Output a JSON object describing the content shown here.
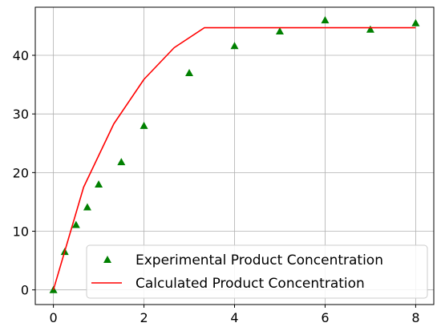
{
  "chart_data": {
    "type": "scatter",
    "title": "",
    "xlabel": "",
    "ylabel": "",
    "xlim": [
      -0.4,
      8.4
    ],
    "ylim": [
      -2.5,
      48.2
    ],
    "xticks": [
      0,
      2,
      4,
      6,
      8
    ],
    "yticks": [
      0,
      10,
      20,
      30,
      40
    ],
    "grid": true,
    "legend_position": "lower-right",
    "series": [
      {
        "name": "Experimental Product Concentration",
        "kind": "scatter",
        "marker": "triangle",
        "color": "#008000",
        "x": [
          0,
          0.25,
          0.5,
          0.75,
          1.0,
          1.5,
          2.0,
          3.0,
          4.0,
          5.0,
          6.0,
          7.0,
          8.0
        ],
        "y": [
          0,
          6.5,
          11.1,
          14.1,
          18.0,
          21.8,
          28.0,
          37.0,
          41.6,
          44.1,
          46.0,
          44.4,
          45.5
        ]
      },
      {
        "name": "Calculated Product Concentration",
        "kind": "line",
        "color": "#ff0000",
        "x": [
          0,
          0.667,
          1.333,
          2.0,
          2.667,
          3.333,
          8.0
        ],
        "y": [
          0,
          17.5,
          28.3,
          35.9,
          41.3,
          44.7,
          44.7
        ]
      }
    ]
  }
}
